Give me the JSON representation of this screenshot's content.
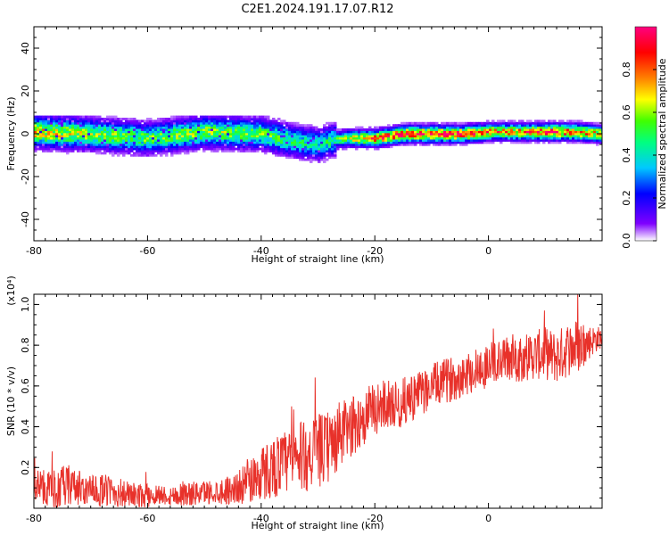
{
  "title": "C2E1.2024.191.17.07.R12",
  "chart_data": [
    {
      "type": "heatmap",
      "xlabel": "Height of straight line (km)",
      "ylabel": "Frequency (Hz)",
      "xlim": [
        -80,
        20
      ],
      "ylim": [
        -50,
        50
      ],
      "x_ticks": [
        -80,
        -60,
        -40,
        -20,
        0
      ],
      "y_ticks": [
        40,
        20,
        0,
        -20,
        -40
      ],
      "colorbar": {
        "label": "Normalized spectral amplitude",
        "range": [
          0,
          1
        ],
        "ticks": [
          0.0,
          0.2,
          0.4,
          0.6,
          0.8
        ],
        "colors": [
          "#ffffff",
          "#7f00ff",
          "#0000ff",
          "#00c8ff",
          "#00ff80",
          "#40ff00",
          "#ffff00",
          "#ff8000",
          "#ff0000",
          "#ff0080"
        ]
      },
      "ridge": {
        "x": [
          -80,
          -70,
          -60,
          -50,
          -40,
          -35,
          -30,
          -28,
          -25,
          -20,
          -15,
          -10,
          -5,
          0,
          5,
          10,
          15,
          20
        ],
        "frequency": [
          1,
          0,
          -2,
          1,
          0,
          -3,
          -5,
          -3,
          -2,
          -2,
          0,
          0,
          0,
          1,
          1,
          1,
          1,
          0
        ],
        "amplitude": [
          0.75,
          0.6,
          0.55,
          0.6,
          0.55,
          0.5,
          0.45,
          0.5,
          0.6,
          0.85,
          0.9,
          0.95,
          0.9,
          0.8,
          0.8,
          0.9,
          0.85,
          0.7
        ]
      }
    },
    {
      "type": "line",
      "xlabel": "Height of straight line (km)",
      "ylabel": "SNR (10 * v/v)",
      "y_multiplier": "(x10⁴)",
      "xlim": [
        -80,
        20
      ],
      "ylim": [
        0,
        1.05
      ],
      "x_ticks": [
        -80,
        -60,
        -40,
        -20,
        0
      ],
      "y_ticks": [
        0.2,
        0.4,
        0.6,
        0.8,
        1.0
      ],
      "series": [
        {
          "color": "#e8312a",
          "x": [
            -80,
            -78,
            -76,
            -74,
            -72,
            -70,
            -68,
            -66,
            -64,
            -62,
            -60,
            -58,
            -56,
            -54,
            -52,
            -50,
            -48,
            -46,
            -44,
            -42,
            -40,
            -38,
            -36,
            -34,
            -32,
            -30,
            -28,
            -26,
            -24,
            -22,
            -20,
            -18,
            -16,
            -14,
            -12,
            -10,
            -8,
            -6,
            -4,
            -2,
            0,
            2,
            4,
            6,
            8,
            10,
            12,
            14,
            16,
            18,
            20
          ],
          "values": [
            0.12,
            0.1,
            0.09,
            0.11,
            0.1,
            0.08,
            0.09,
            0.08,
            0.07,
            0.06,
            0.06,
            0.07,
            0.06,
            0.07,
            0.07,
            0.08,
            0.08,
            0.09,
            0.1,
            0.14,
            0.17,
            0.2,
            0.22,
            0.24,
            0.26,
            0.28,
            0.3,
            0.36,
            0.4,
            0.44,
            0.48,
            0.52,
            0.5,
            0.54,
            0.56,
            0.6,
            0.62,
            0.64,
            0.66,
            0.68,
            0.7,
            0.72,
            0.74,
            0.74,
            0.75,
            0.76,
            0.74,
            0.78,
            0.8,
            0.82,
            0.84
          ],
          "noise": [
            0.08,
            0.09,
            0.1,
            0.11,
            0.09,
            0.08,
            0.08,
            0.08,
            0.07,
            0.06,
            0.06,
            0.05,
            0.05,
            0.06,
            0.06,
            0.06,
            0.06,
            0.07,
            0.08,
            0.12,
            0.14,
            0.15,
            0.16,
            0.17,
            0.18,
            0.18,
            0.18,
            0.17,
            0.15,
            0.14,
            0.13,
            0.12,
            0.12,
            0.12,
            0.11,
            0.11,
            0.11,
            0.11,
            0.11,
            0.11,
            0.11,
            0.11,
            0.12,
            0.12,
            0.12,
            0.13,
            0.13,
            0.14,
            0.14,
            0.08,
            0.05
          ]
        }
      ]
    }
  ]
}
